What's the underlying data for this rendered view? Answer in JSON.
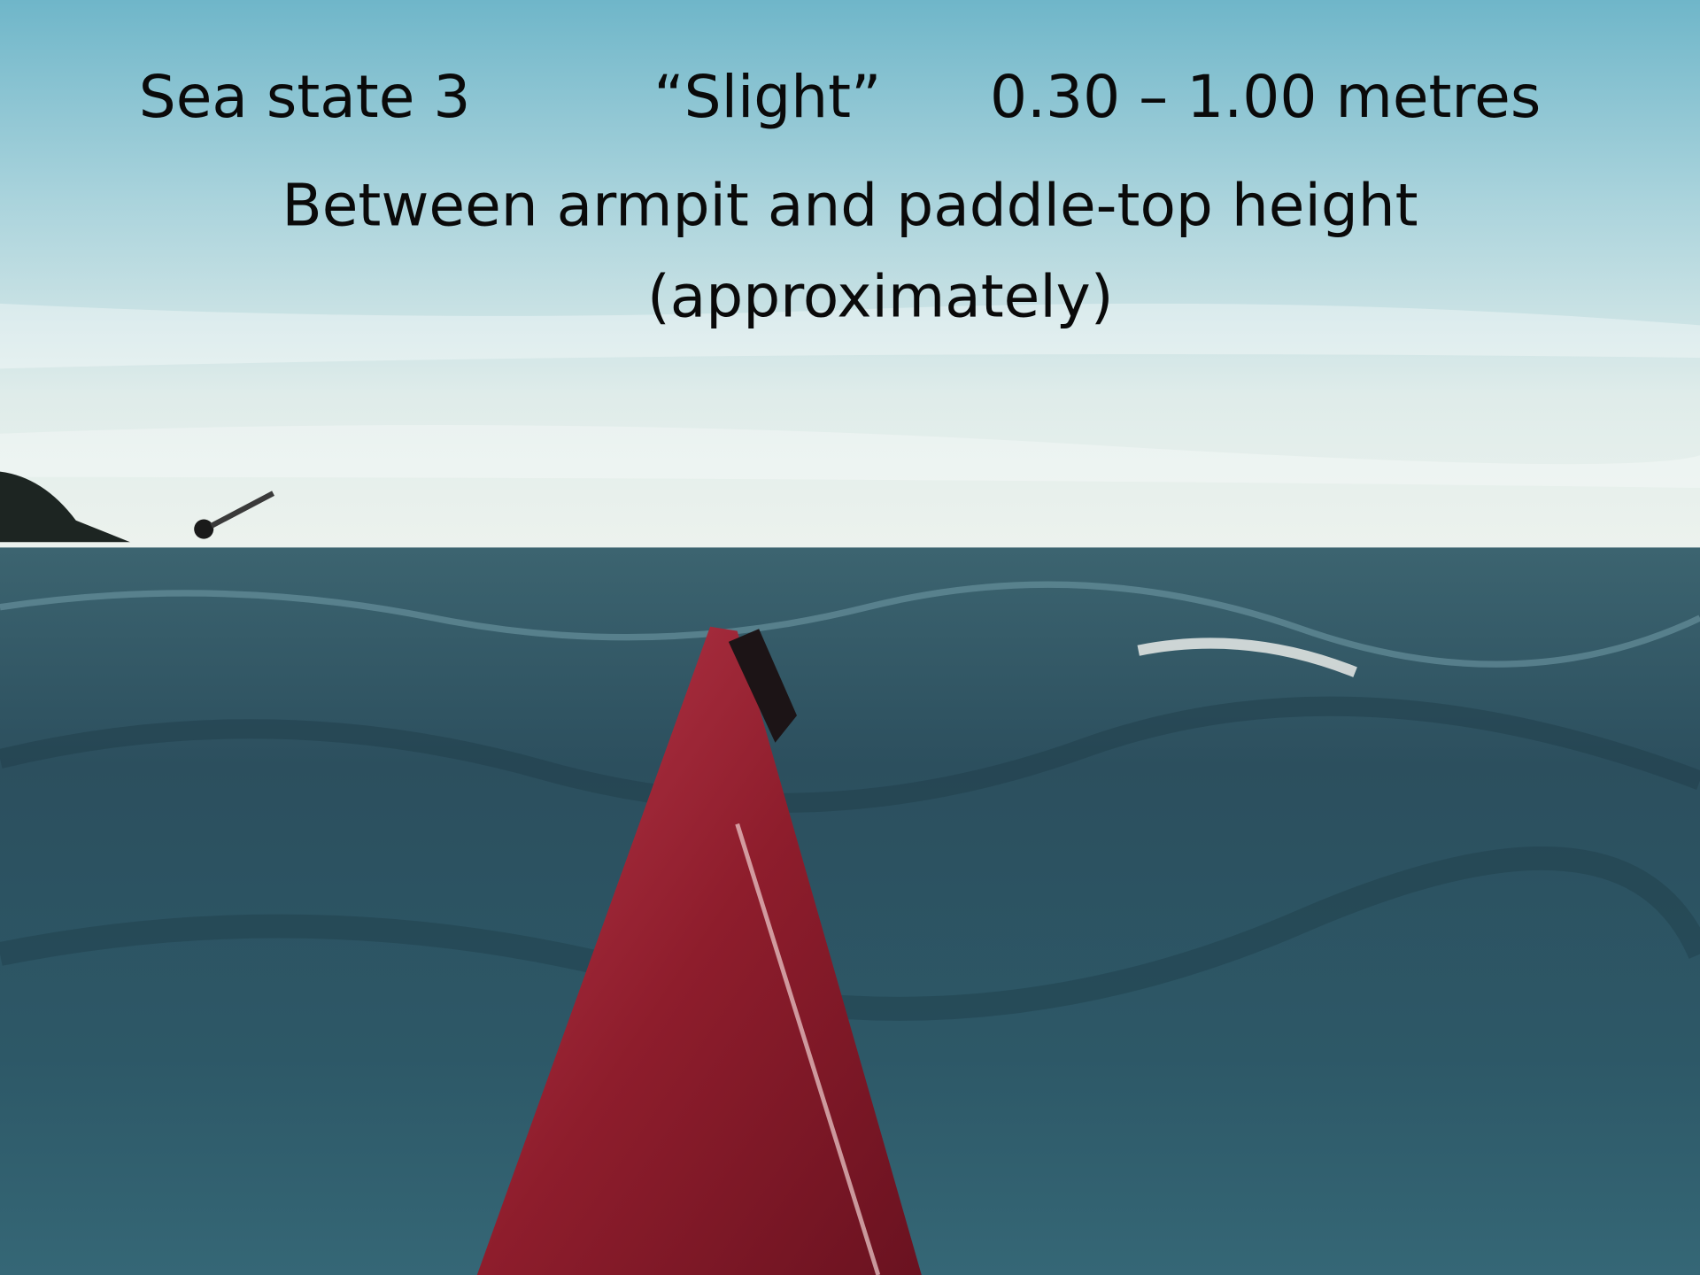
{
  "slide": {
    "line1": [
      "Sea state 3",
      "“Slight”",
      "0.30 – 1.00 metres"
    ],
    "line2": "Between armpit and paddle-top height",
    "line3": "(approximately)"
  }
}
